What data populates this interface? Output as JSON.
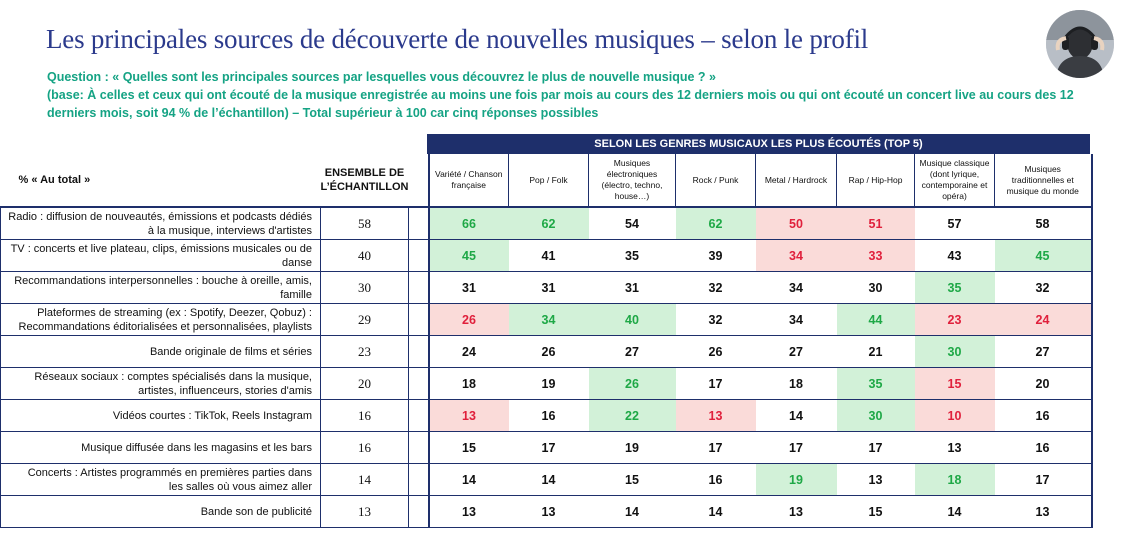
{
  "title": "Les principales sources de découverte de nouvelles musiques – selon le profil",
  "question": "Question : « Quelles sont les principales sources par lesquelles vous découvrez le plus de nouvelle musique ? »",
  "base": "(base: À celles et ceux qui ont écouté de la musique enregistrée au moins une fois par mois au cours des 12 derniers mois ou qui ont écouté un concert live au cours des 12 derniers mois, soit 94 % de l’échantillon) – Total supérieur à 100 car cinq réponses possibles",
  "genre_banner": "SELON LES GENRES MUSICAUX LES PLUS ÉCOUTÉS (TOP 5)",
  "header": {
    "total_label": "% « Au total »",
    "ensemble_line1": "ENSEMBLE DE",
    "ensemble_line2": "L’ÉCHANTILLON",
    "genres": [
      [
        "Variété / Chanson",
        "française"
      ],
      [
        "Pop / Folk"
      ],
      [
        "Musiques",
        "électroniques",
        "(électro, techno,",
        "house…)"
      ],
      [
        "Rock / Punk"
      ],
      [
        "Metal / Hardrock"
      ],
      [
        "Rap / Hip-Hop"
      ],
      [
        "Musique classique",
        "(dont lyrique,",
        "contemporaine et",
        "opéra)"
      ],
      [
        "Musiques",
        "traditionnelles et",
        "musique du monde"
      ]
    ]
  },
  "colors": {
    "title": "#2b3a8c",
    "question": "#15a384",
    "banner_bg": "#1e2f6b",
    "up_bg": "#d2f1d8",
    "up_text": "#1ea846",
    "down_bg": "#fadbd9",
    "down_text": "#e0203c"
  },
  "rows": [
    {
      "label": [
        "Radio : diffusion de nouveautés, émissions et podcasts dédiés",
        "à la musique, interviews d'artistes"
      ],
      "ensemble": "58",
      "values": [
        "66",
        "62",
        "54",
        "62",
        "50",
        "51",
        "57",
        "58"
      ],
      "status": [
        "up",
        "up",
        "",
        "up",
        "down",
        "down",
        "",
        ""
      ]
    },
    {
      "label": [
        "TV : concerts et live plateau, clips, émissions musicales ou de",
        "danse"
      ],
      "ensemble": "40",
      "values": [
        "45",
        "41",
        "35",
        "39",
        "34",
        "33",
        "43",
        "45"
      ],
      "status": [
        "up",
        "",
        "",
        "",
        "down",
        "down",
        "",
        "up"
      ]
    },
    {
      "label": [
        "Recommandations interpersonnelles : bouche à oreille, amis,",
        "famille"
      ],
      "ensemble": "30",
      "values": [
        "31",
        "31",
        "31",
        "32",
        "34",
        "30",
        "35",
        "32"
      ],
      "status": [
        "",
        "",
        "",
        "",
        "",
        "",
        "up",
        ""
      ]
    },
    {
      "label": [
        "Plateformes de streaming (ex : Spotify, Deezer, Qobuz) :",
        "Recommandations éditorialisées et personnalisées, playlists"
      ],
      "ensemble": "29",
      "values": [
        "26",
        "34",
        "40",
        "32",
        "34",
        "44",
        "23",
        "24"
      ],
      "status": [
        "down",
        "up",
        "up",
        "",
        "",
        "up",
        "down",
        "down"
      ]
    },
    {
      "label": [
        "Bande originale de films et séries"
      ],
      "ensemble": "23",
      "values": [
        "24",
        "26",
        "27",
        "26",
        "27",
        "21",
        "30",
        "27"
      ],
      "status": [
        "",
        "",
        "",
        "",
        "",
        "",
        "up",
        ""
      ]
    },
    {
      "label": [
        "Réseaux sociaux : comptes spécialisés dans la musique,",
        "artistes, influenceurs, stories d'amis"
      ],
      "ensemble": "20",
      "values": [
        "18",
        "19",
        "26",
        "17",
        "18",
        "35",
        "15",
        "20"
      ],
      "status": [
        "",
        "",
        "up",
        "",
        "",
        "up",
        "down",
        ""
      ]
    },
    {
      "label": [
        "Vidéos courtes : TikTok, Reels Instagram"
      ],
      "ensemble": "16",
      "values": [
        "13",
        "16",
        "22",
        "13",
        "14",
        "30",
        "10",
        "16"
      ],
      "status": [
        "down",
        "",
        "up",
        "down",
        "",
        "up",
        "down",
        ""
      ]
    },
    {
      "label": [
        "Musique diffusée dans les magasins et les bars"
      ],
      "ensemble": "16",
      "values": [
        "15",
        "17",
        "19",
        "17",
        "17",
        "17",
        "13",
        "16"
      ],
      "status": [
        "",
        "",
        "",
        "",
        "",
        "",
        "",
        ""
      ]
    },
    {
      "label": [
        "Concerts : Artistes programmés en premières parties dans",
        "les salles où vous aimez aller"
      ],
      "ensemble": "14",
      "values": [
        "14",
        "14",
        "15",
        "16",
        "19",
        "13",
        "18",
        "17"
      ],
      "status": [
        "",
        "",
        "",
        "",
        "up",
        "",
        "up",
        ""
      ]
    },
    {
      "label": [
        "Bande son de publicité"
      ],
      "ensemble": "13",
      "values": [
        "13",
        "13",
        "14",
        "14",
        "13",
        "15",
        "14",
        "13"
      ],
      "status": [
        "",
        "",
        "",
        "",
        "",
        "",
        "",
        ""
      ]
    }
  ]
}
